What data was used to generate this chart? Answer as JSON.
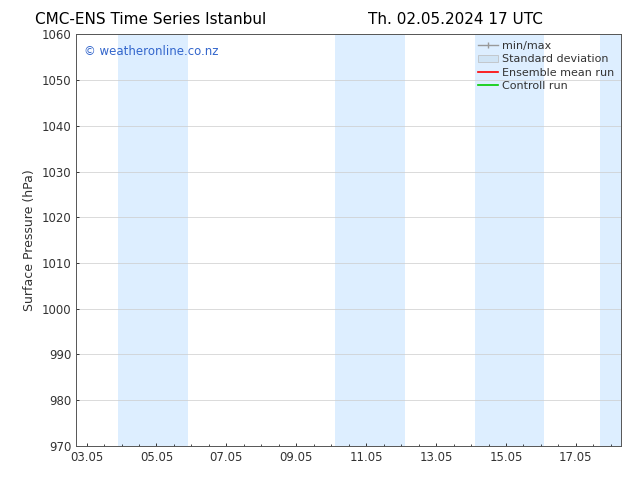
{
  "title_left": "CMC-ENS Time Series Istanbul",
  "title_right": "Th. 02.05.2024 17 UTC",
  "ylabel": "Surface Pressure (hPa)",
  "ylim": [
    970,
    1060
  ],
  "yticks": [
    970,
    980,
    990,
    1000,
    1010,
    1020,
    1030,
    1040,
    1050,
    1060
  ],
  "xtick_labels": [
    "03.05",
    "05.05",
    "07.05",
    "09.05",
    "11.05",
    "13.05",
    "15.05",
    "17.05"
  ],
  "xtick_positions": [
    0,
    2,
    4,
    6,
    8,
    10,
    12,
    14
  ],
  "xlim": [
    -0.3,
    15.3
  ],
  "background_color": "#ffffff",
  "plot_bg_color": "#ffffff",
  "shaded_bands": [
    {
      "xmin": 0.9,
      "xmax": 2.9,
      "color": "#ddeeff"
    },
    {
      "xmin": 7.1,
      "xmax": 9.1,
      "color": "#ddeeff"
    },
    {
      "xmin": 11.1,
      "xmax": 13.1,
      "color": "#ddeeff"
    },
    {
      "xmin": 14.7,
      "xmax": 15.35,
      "color": "#ddeeff"
    }
  ],
  "watermark_text": "© weatheronline.co.nz",
  "watermark_color": "#3366cc",
  "legend_labels": [
    "min/max",
    "Standard deviation",
    "Ensemble mean run",
    "Controll run"
  ],
  "legend_line_colors": [
    "#999999",
    "#bbbbbb",
    "#ff0000",
    "#00cc00"
  ],
  "title_fontsize": 11,
  "label_fontsize": 9,
  "tick_fontsize": 8.5,
  "legend_fontsize": 8,
  "grid_color": "#cccccc",
  "spine_color": "#555555",
  "tick_color": "#333333"
}
